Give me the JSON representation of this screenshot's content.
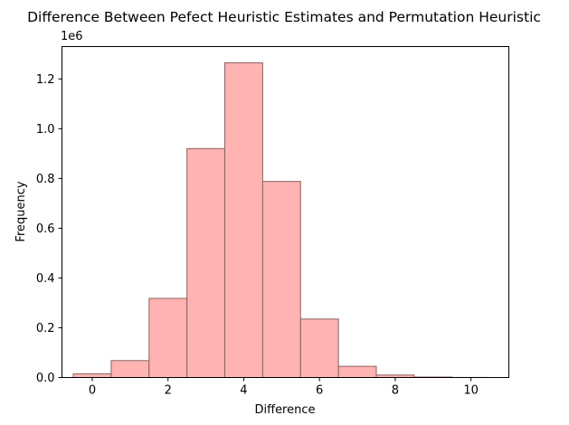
{
  "chart_data": {
    "type": "bar",
    "title": "Difference Between Pefect Heuristic Estimates and Permutation Heuristic",
    "xlabel": "Difference",
    "ylabel": "Frequency",
    "y_offset_label": "1e6",
    "xlim": [
      -0.8,
      11.0
    ],
    "ylim": [
      0,
      1330000
    ],
    "x_ticks": [
      0,
      2,
      4,
      6,
      8,
      10
    ],
    "y_ticks": [
      0.0,
      0.2,
      0.4,
      0.6,
      0.8,
      1.0,
      1.2
    ],
    "y_tick_labels": [
      "0.0",
      "0.2",
      "0.4",
      "0.6",
      "0.8",
      "1.0",
      "1.2"
    ],
    "bins": [
      {
        "center": 0,
        "value": 15000
      },
      {
        "center": 1,
        "value": 68000
      },
      {
        "center": 2,
        "value": 318000
      },
      {
        "center": 3,
        "value": 920000
      },
      {
        "center": 4,
        "value": 1265000
      },
      {
        "center": 5,
        "value": 788000
      },
      {
        "center": 6,
        "value": 235000
      },
      {
        "center": 7,
        "value": 45000
      },
      {
        "center": 8,
        "value": 10000
      },
      {
        "center": 9,
        "value": 2000
      },
      {
        "center": 10,
        "value": 300
      }
    ],
    "bin_width": 1,
    "bar_color": "#ffb3b3",
    "edge_color": "#8a6262",
    "grid": false
  }
}
